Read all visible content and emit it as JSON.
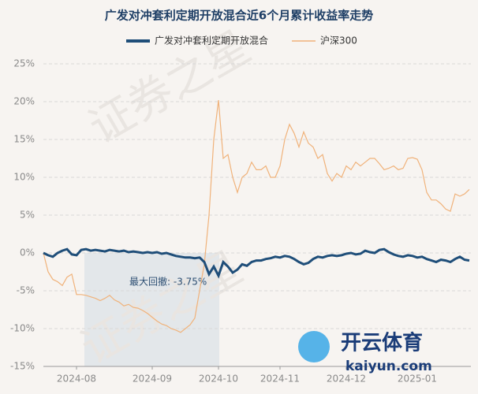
{
  "chart_data": {
    "type": "line",
    "title": "广发对冲套利定期开放混合近6个月累计收益率走势",
    "categories": [
      null,
      null,
      null,
      null,
      null,
      null,
      null,
      "2024-08",
      null,
      null,
      null,
      null,
      null,
      null,
      null,
      null,
      null,
      null,
      null,
      null,
      null,
      null,
      null,
      "2024-09",
      null,
      null,
      null,
      null,
      null,
      null,
      null,
      null,
      null,
      null,
      null,
      null,
      null,
      "2024-10",
      null,
      null,
      null,
      null,
      null,
      null,
      null,
      null,
      null,
      null,
      null,
      null,
      "2024-11",
      null,
      null,
      null,
      null,
      null,
      null,
      null,
      null,
      null,
      null,
      null,
      null,
      null,
      "2024-12",
      null,
      null,
      null,
      null,
      null,
      null,
      null,
      null,
      null,
      null,
      null,
      null,
      null,
      null,
      "2025-01",
      null,
      null,
      null,
      null,
      null,
      null,
      null,
      null,
      null,
      null,
      null
    ],
    "series": [
      {
        "name": "广发对冲套利定期开放混合",
        "color": "#1f4e79",
        "values": [
          0,
          -0.3,
          -0.5,
          0,
          0.3,
          0.5,
          -0.2,
          -0.3,
          0.4,
          0.5,
          0.3,
          0.4,
          0.3,
          0.2,
          0.4,
          0.3,
          0.2,
          0.3,
          0.1,
          0.2,
          0.1,
          0,
          0.1,
          0,
          0.1,
          -0.1,
          0,
          -0.2,
          -0.4,
          -0.5,
          -0.6,
          -0.6,
          -0.7,
          -0.6,
          -1.2,
          -2.8,
          -1.8,
          -3,
          -1.2,
          -1.8,
          -2.6,
          -2.2,
          -1.5,
          -1.7,
          -1.2,
          -1,
          -1,
          -0.8,
          -0.7,
          -0.5,
          -0.6,
          -0.4,
          -0.5,
          -0.8,
          -1.2,
          -1.5,
          -1.3,
          -0.8,
          -0.5,
          -0.6,
          -0.4,
          -0.3,
          -0.4,
          -0.3,
          -0.1,
          0,
          -0.2,
          -0.1,
          0.3,
          0.1,
          0,
          0.4,
          0.5,
          0.1,
          -0.2,
          -0.4,
          -0.5,
          -0.3,
          -0.4,
          -0.6,
          -0.5,
          -0.8,
          -1,
          -1.2,
          -0.9,
          -1,
          -1.2,
          -0.8,
          -0.5,
          -0.9,
          -1
        ]
      },
      {
        "name": "沪深300",
        "color": "#f0b27a",
        "values": [
          0,
          -2.5,
          -3.5,
          -3.8,
          -4.3,
          -3.2,
          -2.8,
          -5.5,
          -5.5,
          -5.6,
          -5.8,
          -6,
          -6.3,
          -6,
          -5.6,
          -6.2,
          -6.5,
          -7,
          -6.8,
          -7.2,
          -7.3,
          -7.6,
          -8,
          -8.5,
          -9,
          -9.4,
          -9.6,
          -10,
          -10.2,
          -10.5,
          -10,
          -9.5,
          -8.6,
          -5,
          -1.5,
          5,
          15,
          20.2,
          12.5,
          13,
          10,
          8,
          10,
          10.5,
          12,
          11,
          11,
          11.5,
          10,
          10,
          11.5,
          15,
          17,
          15.8,
          14,
          16,
          14.5,
          14,
          12.5,
          13,
          10.5,
          9.5,
          10.5,
          10,
          11.5,
          11,
          12,
          11.5,
          12,
          12.5,
          12.5,
          11.8,
          11,
          11.2,
          11.5,
          11,
          11.2,
          12.5,
          12.6,
          12.4,
          11,
          8,
          7,
          7,
          6.5,
          5.8,
          5.5,
          7.8,
          7.5,
          7.8,
          8.4
        ]
      }
    ],
    "ylim": [
      -15,
      25
    ],
    "yticks": [
      {
        "value": -15,
        "label": "-15%"
      },
      {
        "value": -10,
        "label": "-10%"
      },
      {
        "value": -5,
        "label": "-5%"
      },
      {
        "value": 0,
        "label": "0%"
      },
      {
        "value": 5,
        "label": "5%"
      },
      {
        "value": 10,
        "label": "10%"
      },
      {
        "value": 15,
        "label": "15%"
      },
      {
        "value": 20,
        "label": "20%"
      },
      {
        "value": 25,
        "label": "25%"
      }
    ],
    "grid": true,
    "annotation": "最大回撤: -3.75%",
    "watermark": "证券之星",
    "logo": {
      "name": "开云体育",
      "site": "kaiyun.com"
    }
  }
}
